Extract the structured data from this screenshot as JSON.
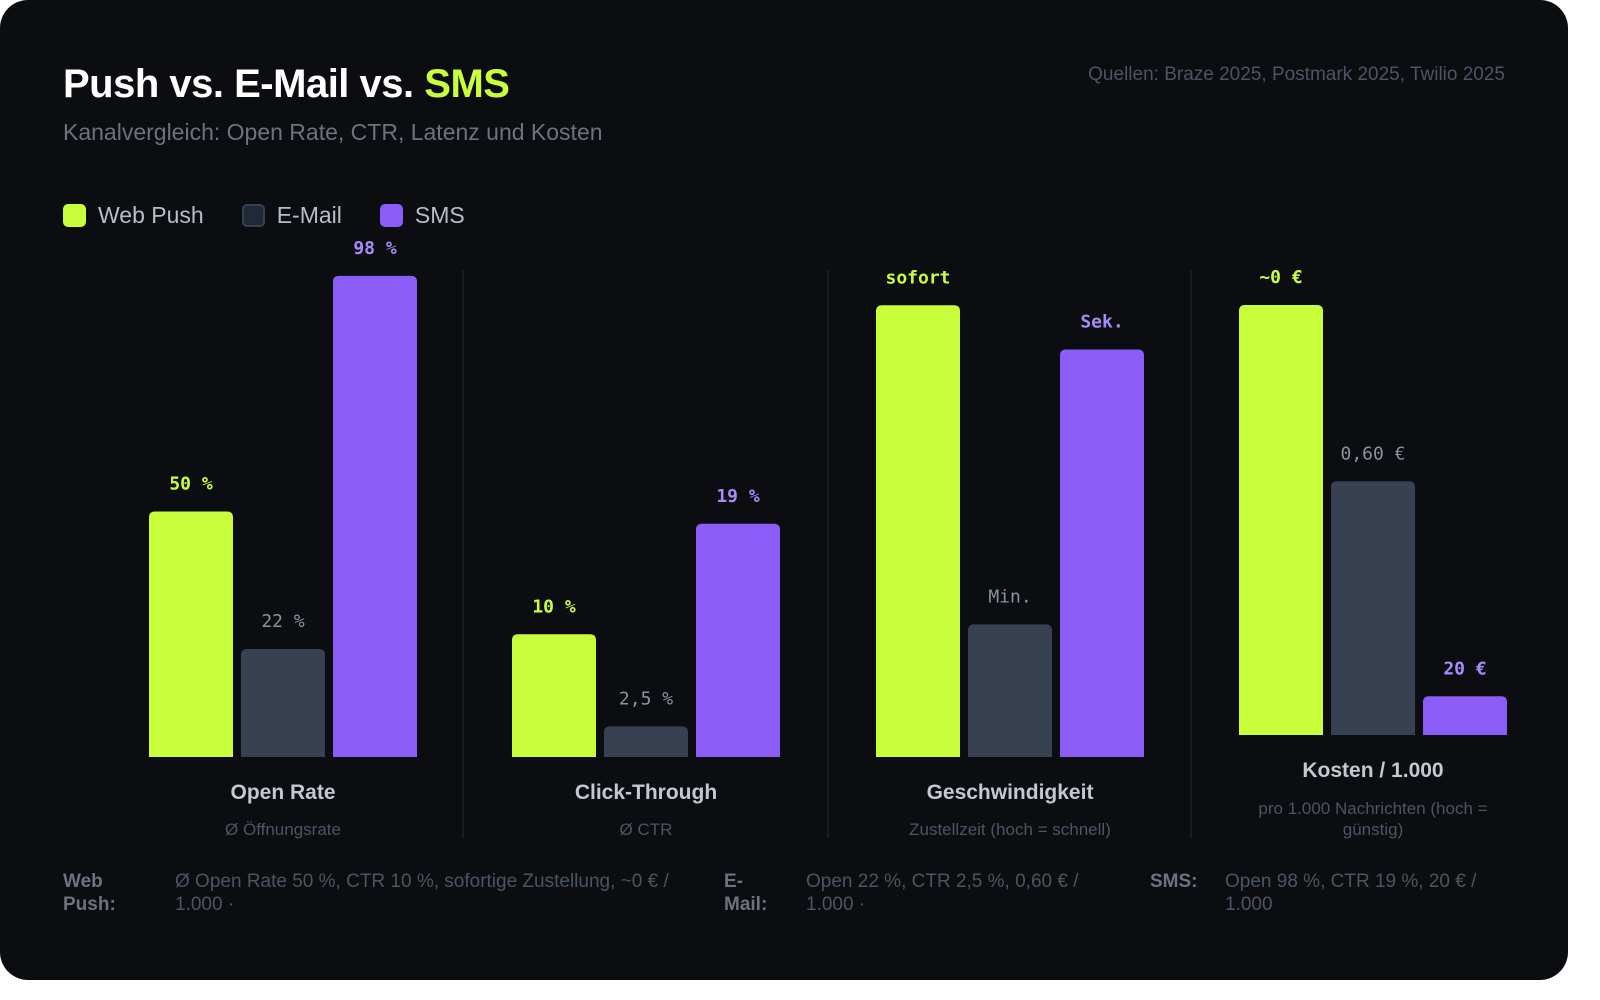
{
  "header": {
    "title_main": "Push vs. E-Mail vs.",
    "title_accent": "SMS",
    "subtitle": "Kanalvergleich: Open Rate, CTR, Latenz und Kosten",
    "sources": "Quellen: Braze 2025, Postmark 2025, Twilio 2025"
  },
  "legend": [
    {
      "label": "Web Push",
      "color": "#c8ff3a"
    },
    {
      "label": "E-Mail",
      "color": "#374151"
    },
    {
      "label": "SMS",
      "color": "#8b5cf6"
    }
  ],
  "chart_data": [
    {
      "type": "bar",
      "title": "Open Rate",
      "subtitle": "Ø Öffnungsrate",
      "categories": [
        "Web Push",
        "E-Mail",
        "SMS"
      ],
      "values": [
        50,
        22,
        98
      ],
      "value_labels": [
        "50 %",
        "22 %",
        "98 %"
      ],
      "unit": "%",
      "ylim": [
        0,
        100
      ]
    },
    {
      "type": "bar",
      "title": "Click-Through",
      "subtitle": "Ø CTR",
      "categories": [
        "Web Push",
        "E-Mail",
        "SMS"
      ],
      "values": [
        10,
        2.5,
        19
      ],
      "value_labels": [
        "10 %",
        "2,5 %",
        "19 %"
      ],
      "unit": "%",
      "ylim": [
        0,
        40
      ]
    },
    {
      "type": "bar",
      "title": "Geschwindigkeit",
      "subtitle": "Zustellzeit (hoch = schnell)",
      "categories": [
        "Web Push",
        "E-Mail",
        "SMS"
      ],
      "values": [
        0.92,
        0.27,
        0.83
      ],
      "value_labels": [
        "sofort",
        "Min.",
        "Sek."
      ],
      "ylim": [
        0,
        1
      ]
    },
    {
      "type": "bar",
      "title": "Kosten / 1.000",
      "subtitle": "pro 1.000 Nachrichten (hoch = günstig)",
      "categories": [
        "Web Push",
        "E-Mail",
        "SMS"
      ],
      "values": [
        1.0,
        0.59,
        0.09
      ],
      "value_labels": [
        "~0 €",
        "0,60 €",
        "20 €"
      ],
      "ylim": [
        0,
        1
      ]
    }
  ],
  "footer": [
    {
      "key": "Web Push:",
      "text": "Ø Open Rate 50 %, CTR 10 %, sofortige Zustellung, ~0 € / 1.000 ·"
    },
    {
      "key": "E-Mail:",
      "text": "Open 22 %, CTR 2,5 %, 0,60 € / 1.000 ·"
    },
    {
      "key": "SMS:",
      "text": "Open 98 %, CTR 19 %, 20 € / 1.000"
    }
  ]
}
